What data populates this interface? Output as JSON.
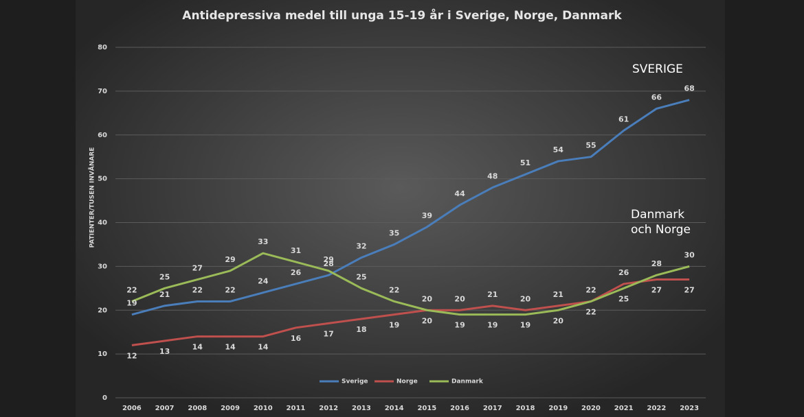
{
  "chart_data": {
    "type": "line",
    "title": "Antidepressiva medel till unga 15-19 år i Sverige, Norge, Danmark",
    "y_label": "PATIENTER/TUSEN INVÅNARE",
    "annotations": [
      "SVERIGE",
      "Danmark",
      "och Norge"
    ],
    "categories": [
      "2006",
      "2007",
      "2008",
      "2009",
      "2010",
      "2011",
      "2012",
      "2013",
      "2014",
      "2015",
      "2016",
      "2017",
      "2018",
      "2019",
      "2020",
      "2021",
      "2022",
      "2023"
    ],
    "series": [
      {
        "name": "Sverige",
        "color": "#4a7ebb",
        "values": [
          19,
          21,
          22,
          22,
          24,
          26,
          28,
          32,
          35,
          39,
          44,
          48,
          51,
          54,
          55,
          61,
          66,
          68
        ]
      },
      {
        "name": "Norge",
        "color": "#c0504d",
        "values": [
          12,
          13,
          14,
          14,
          14,
          16,
          17,
          18,
          19,
          20,
          20,
          21,
          20,
          21,
          22,
          26,
          27,
          27
        ]
      },
      {
        "name": "Danmark",
        "color": "#9bbb59",
        "values": [
          22,
          25,
          27,
          29,
          33,
          31,
          29,
          25,
          22,
          20,
          19,
          19,
          19,
          20,
          22,
          25,
          28,
          30
        ]
      }
    ],
    "ylim": [
      0,
      80
    ],
    "yticks": [
      0,
      10,
      20,
      30,
      40,
      50,
      60,
      70,
      80
    ],
    "grid": true,
    "legend": "bottom"
  }
}
